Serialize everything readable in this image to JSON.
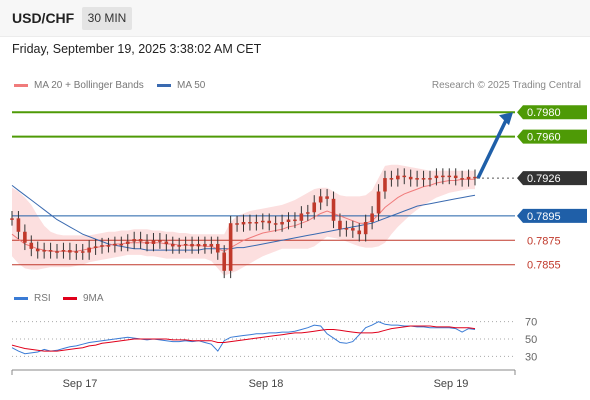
{
  "header": {
    "symbol": "USD/CHF",
    "timeframe": "30 MIN",
    "datetime": "Friday, September 19, 2025 3:38:02 AM CET",
    "credit": "Research © 2025 Trading Central"
  },
  "legend": {
    "ma20_label": "MA 20 + Bollinger Bands",
    "ma50_label": "MA 50",
    "rsi_label": "RSI",
    "rsi_ma_label": "9MA"
  },
  "colors": {
    "resistance": "#4e9a06",
    "current": "#333333",
    "pivot": "#1f5fa8",
    "support": "#c0392b",
    "ma20": "#f07b7b",
    "bollinger_fill": "#fbd9d9",
    "ma50": "#3a6ab0",
    "candle": "#c0392b",
    "rsi": "#3a7bd5",
    "rsi_ma": "#e0001b",
    "arrow": "#1f5fa8"
  },
  "chart_data": [
    {
      "type": "line",
      "title": "USD/CHF 30 MIN",
      "x_labels": [
        "Sep 17",
        "Sep 18",
        "Sep 19"
      ],
      "ylim": [
        0.784,
        0.799
      ],
      "levels": [
        {
          "value": 0.798,
          "label": "0.7980",
          "kind": "resistance"
        },
        {
          "value": 0.796,
          "label": "0.7960",
          "kind": "resistance"
        },
        {
          "value": 0.7926,
          "label": "0.7926",
          "kind": "current"
        },
        {
          "value": 0.7895,
          "label": "0.7895",
          "kind": "pivot"
        },
        {
          "value": 0.7875,
          "label": "0.7875",
          "kind": "support"
        },
        {
          "value": 0.7855,
          "label": "0.7855",
          "kind": "support"
        }
      ],
      "price": [
        0.7893,
        0.7882,
        0.7873,
        0.7868,
        0.7866,
        0.7867,
        0.7866,
        0.7866,
        0.7867,
        0.7865,
        0.7866,
        0.7865,
        0.7869,
        0.787,
        0.7871,
        0.7871,
        0.7872,
        0.7872,
        0.7874,
        0.7876,
        0.7874,
        0.7872,
        0.7875,
        0.7874,
        0.7872,
        0.787,
        0.7871,
        0.7872,
        0.787,
        0.7872,
        0.787,
        0.7872,
        0.7865,
        0.785,
        0.7889,
        0.7888,
        0.789,
        0.7889,
        0.789,
        0.7891,
        0.7889,
        0.7888,
        0.789,
        0.7892,
        0.7891,
        0.7897,
        0.7898,
        0.7906,
        0.7911,
        0.7909,
        0.7891,
        0.7884,
        0.7885,
        0.7883,
        0.788,
        0.789,
        0.7897,
        0.7915,
        0.7926,
        0.7925,
        0.7928,
        0.7927,
        0.7925,
        0.7926,
        0.7925,
        0.7926,
        0.7928,
        0.7927,
        0.7928,
        0.7926,
        0.7925,
        0.7927,
        0.7926
      ],
      "ma20": [
        0.788,
        0.7876,
        0.7872,
        0.787,
        0.7868,
        0.7867,
        0.7866,
        0.7866,
        0.7866,
        0.7866,
        0.7866,
        0.7867,
        0.7868,
        0.7869,
        0.787,
        0.7871,
        0.7872,
        0.7872,
        0.7873,
        0.7873,
        0.7873,
        0.7873,
        0.7873,
        0.7873,
        0.7872,
        0.7872,
        0.7871,
        0.7871,
        0.7871,
        0.7871,
        0.787,
        0.787,
        0.7868,
        0.7866,
        0.7869,
        0.7872,
        0.7875,
        0.7877,
        0.7879,
        0.7881,
        0.7882,
        0.7883,
        0.7884,
        0.7886,
        0.7887,
        0.7889,
        0.7891,
        0.7894,
        0.7897,
        0.7899,
        0.7897,
        0.7895,
        0.7893,
        0.7891,
        0.7889,
        0.7889,
        0.7891,
        0.7896,
        0.7902,
        0.7906,
        0.791,
        0.7913,
        0.7915,
        0.7917,
        0.7919,
        0.792,
        0.7922,
        0.7923,
        0.7924,
        0.7924,
        0.7925,
        0.7925,
        0.7925
      ],
      "bb_upper": [
        0.7918,
        0.7915,
        0.791,
        0.7904,
        0.7895,
        0.7887,
        0.7882,
        0.788,
        0.7879,
        0.7879,
        0.7879,
        0.7879,
        0.7879,
        0.788,
        0.7881,
        0.7882,
        0.7882,
        0.7883,
        0.7883,
        0.7884,
        0.7884,
        0.7884,
        0.7883,
        0.7883,
        0.7882,
        0.7882,
        0.7881,
        0.7881,
        0.788,
        0.788,
        0.788,
        0.788,
        0.788,
        0.788,
        0.789,
        0.7895,
        0.7897,
        0.7899,
        0.79,
        0.7901,
        0.7902,
        0.7903,
        0.7904,
        0.7906,
        0.7908,
        0.7911,
        0.7914,
        0.7917,
        0.7918,
        0.7918,
        0.7915,
        0.7912,
        0.7911,
        0.7911,
        0.7911,
        0.7912,
        0.7916,
        0.7926,
        0.7936,
        0.7937,
        0.7937,
        0.7936,
        0.7935,
        0.7934,
        0.7933,
        0.7932,
        0.7932,
        0.7932,
        0.7932,
        0.7932,
        0.7932,
        0.7932,
        0.7932
      ],
      "bb_lower": [
        0.7862,
        0.7856,
        0.7852,
        0.7851,
        0.7851,
        0.7852,
        0.7853,
        0.7853,
        0.7853,
        0.7853,
        0.7854,
        0.7855,
        0.7857,
        0.7858,
        0.7859,
        0.786,
        0.7861,
        0.7862,
        0.7863,
        0.7863,
        0.7863,
        0.7862,
        0.7862,
        0.7861,
        0.786,
        0.786,
        0.786,
        0.786,
        0.786,
        0.786,
        0.786,
        0.7858,
        0.7852,
        0.7846,
        0.7848,
        0.785,
        0.7853,
        0.7856,
        0.7859,
        0.7862,
        0.7864,
        0.7866,
        0.7868,
        0.7868,
        0.7868,
        0.7868,
        0.7868,
        0.787,
        0.7874,
        0.7878,
        0.7877,
        0.7876,
        0.7874,
        0.7872,
        0.787,
        0.7869,
        0.7869,
        0.787,
        0.7873,
        0.788,
        0.7886,
        0.7891,
        0.7896,
        0.79,
        0.7904,
        0.7907,
        0.791,
        0.7912,
        0.7914,
        0.7915,
        0.7916,
        0.7917,
        0.7917
      ],
      "ma50": [
        0.792,
        0.7916,
        0.7912,
        0.7908,
        0.7904,
        0.79,
        0.7896,
        0.7892,
        0.7889,
        0.7886,
        0.7883,
        0.788,
        0.7878,
        0.7876,
        0.7874,
        0.7872,
        0.7871,
        0.787,
        0.7869,
        0.7868,
        0.7868,
        0.7867,
        0.7867,
        0.7867,
        0.7867,
        0.7867,
        0.7867,
        0.7867,
        0.7867,
        0.7867,
        0.7868,
        0.7868,
        0.7868,
        0.7868,
        0.7868,
        0.7869,
        0.7869,
        0.787,
        0.7871,
        0.7872,
        0.7873,
        0.7874,
        0.7875,
        0.7876,
        0.7877,
        0.7878,
        0.7879,
        0.788,
        0.7881,
        0.7882,
        0.7883,
        0.7884,
        0.7885,
        0.7886,
        0.7887,
        0.7888,
        0.7889,
        0.7891,
        0.7893,
        0.7895,
        0.7897,
        0.7899,
        0.7901,
        0.7903,
        0.7904,
        0.7905,
        0.7906,
        0.7907,
        0.7908,
        0.7909,
        0.791,
        0.7911,
        0.7912
      ],
      "forecast": {
        "from": 0.7926,
        "to": 0.798
      }
    },
    {
      "type": "line",
      "title": "RSI",
      "ylim": [
        20,
        80
      ],
      "y_ticks": [
        70,
        50,
        30
      ],
      "series": [
        {
          "name": "RSI",
          "values": [
            40,
            36,
            33,
            34,
            35,
            38,
            36,
            37,
            39,
            41,
            42,
            44,
            46,
            47,
            48,
            49,
            50,
            51,
            52,
            51,
            50,
            49,
            50,
            49,
            48,
            47,
            47,
            48,
            47,
            48,
            46,
            44,
            36,
            48,
            52,
            53,
            54,
            55,
            56,
            56,
            57,
            57,
            58,
            58,
            59,
            61,
            63,
            66,
            65,
            56,
            51,
            46,
            45,
            47,
            55,
            63,
            66,
            70,
            67,
            66,
            66,
            65,
            65,
            64,
            64,
            63,
            63,
            63,
            63,
            62,
            58,
            62,
            61
          ]
        },
        {
          "name": "9MA",
          "values": [
            43,
            41,
            39,
            38,
            37,
            36,
            36,
            36,
            37,
            38,
            39,
            40,
            42,
            43,
            45,
            46,
            47,
            48,
            49,
            50,
            50,
            50,
            50,
            50,
            50,
            49,
            49,
            49,
            48,
            48,
            48,
            48,
            46,
            46,
            47,
            48,
            49,
            50,
            51,
            52,
            53,
            54,
            55,
            56,
            57,
            57,
            58,
            59,
            60,
            61,
            61,
            60,
            59,
            58,
            57,
            57,
            57,
            58,
            60,
            62,
            63,
            64,
            65,
            65,
            65,
            65,
            64,
            64,
            64,
            63,
            63,
            63,
            62
          ]
        }
      ]
    }
  ]
}
